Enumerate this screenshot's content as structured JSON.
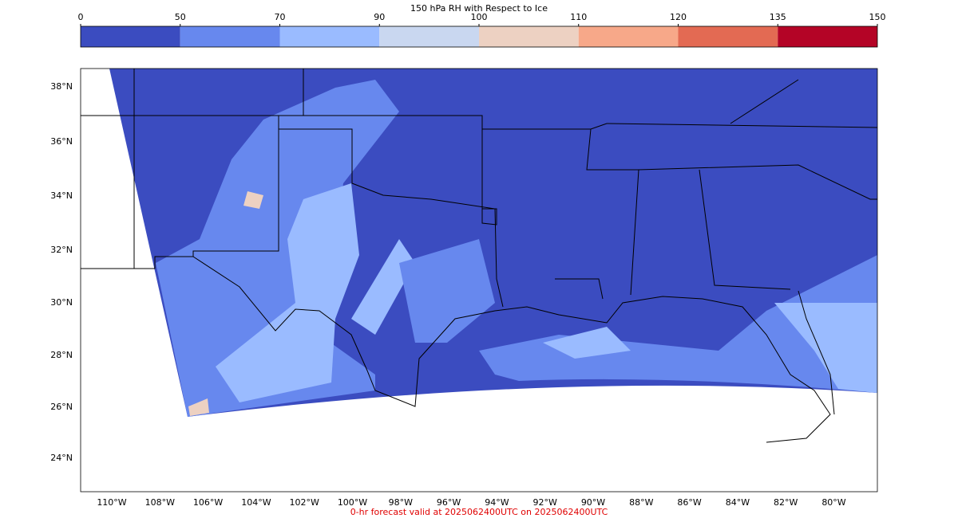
{
  "colorbar": {
    "title": "150 hPa RH with Respect to Ice",
    "levels": [
      0,
      50,
      70,
      90,
      100,
      110,
      120,
      135,
      150
    ],
    "colors": [
      "#3b4cc0",
      "#6788ee",
      "#9abbff",
      "#c9d7f0",
      "#edd1c2",
      "#f7a889",
      "#e36a53",
      "#b40426"
    ]
  },
  "map": {
    "lat_labels": [
      "38°N",
      "36°N",
      "34°N",
      "32°N",
      "30°N",
      "28°N",
      "26°N",
      "24°N"
    ],
    "lon_labels": [
      "110°W",
      "108°W",
      "106°W",
      "104°W",
      "102°W",
      "100°W",
      "98°W",
      "96°W",
      "94°W",
      "92°W",
      "90°W",
      "88°W",
      "86°W",
      "84°W",
      "82°W",
      "80°W"
    ]
  },
  "footer": "0-hr forecast valid at 2025062400UTC on 2025062400UTC"
}
